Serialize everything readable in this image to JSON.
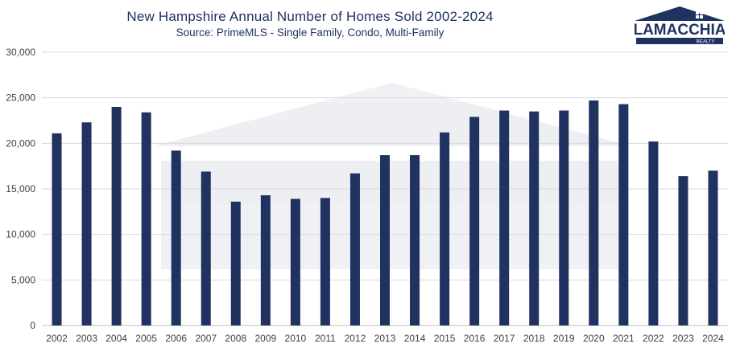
{
  "chart_data": {
    "type": "bar",
    "title": "New Hampshire Annual Number of Homes Sold 2002-2024",
    "subtitle": "Source: PrimeMLS - Single Family, Condo, Multi-Family",
    "xlabel": "",
    "ylabel": "",
    "ylim": [
      0,
      30000
    ],
    "yticks": [
      "0",
      "5,000",
      "10,000",
      "15,000",
      "20,000",
      "25,000",
      "30,000"
    ],
    "ytick_values": [
      0,
      5000,
      10000,
      15000,
      20000,
      25000,
      30000
    ],
    "grid": true,
    "legend": "none",
    "bar_color": "#1f3260",
    "categories": [
      "2002",
      "2003",
      "2004",
      "2005",
      "2006",
      "2007",
      "2008",
      "2009",
      "2010",
      "2011",
      "2012",
      "2013",
      "2014",
      "2015",
      "2016",
      "2017",
      "2018",
      "2019",
      "2020",
      "2021",
      "2022",
      "2023",
      "2024"
    ],
    "values": [
      21100,
      22300,
      24000,
      23400,
      19200,
      16900,
      13600,
      14300,
      13900,
      14000,
      16700,
      18700,
      18700,
      21200,
      22900,
      23600,
      23500,
      23600,
      24700,
      24300,
      20200,
      16400,
      17000
    ]
  },
  "logo": {
    "wordmark": "LAMACCHIA",
    "tagline": "REALTY",
    "color": "#1f3260"
  }
}
